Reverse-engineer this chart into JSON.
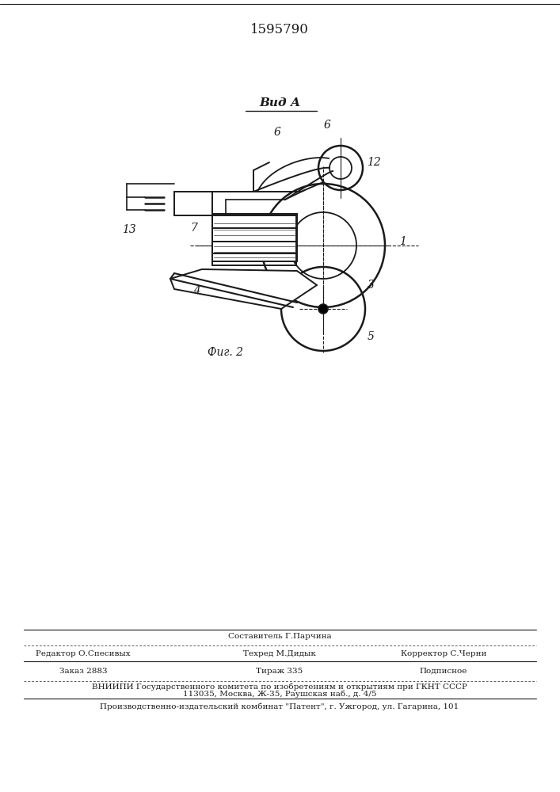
{
  "patent_number": "1595790",
  "view_label": "Вид А",
  "fig_label": "Фиг. 2",
  "bg_color": "#ffffff",
  "line_color": "#1a1a1a",
  "editor_line": "Редактор О.Спесивых",
  "composer_line": "Составитель Г.Парчина",
  "techred_line": "Техред М.Дидык",
  "corrector_line": "Корректор С.Черни",
  "order_line": "Заказ 2883",
  "tirazh_line": "Тираж 335",
  "podpisnoe_line": "Подписное",
  "vniip_line1": "ВНИИПИ Государственного комитета по изобретениям и открытиям при ГКНТ СССР",
  "vniip_line2": "113035, Москва, Ж-35, Раушская наб., д. 4/5",
  "production_line": "Производственно-издательский комбинат \"Патент\", г. Ужгород, ул. Гагарина, 101"
}
